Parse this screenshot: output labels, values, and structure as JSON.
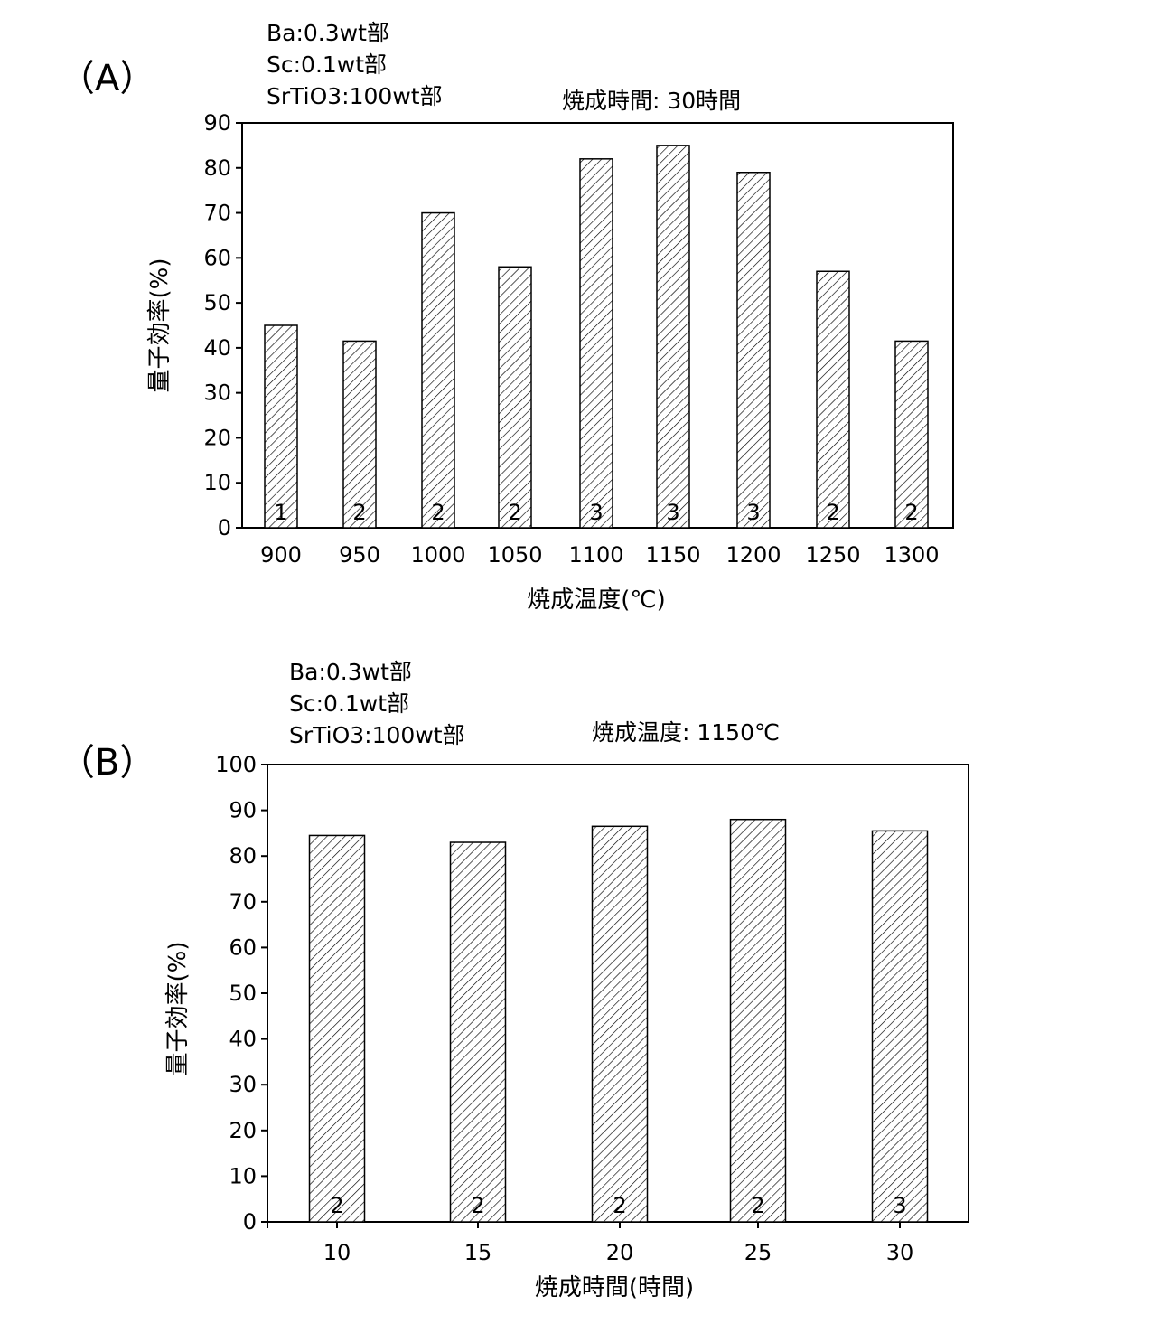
{
  "chart_data": [
    {
      "type": "bar",
      "panel_label": "（A）",
      "annotations": [
        "Ba:0.3wt部",
        "Sc:0.1wt部",
        "SrTiO3:100wt部"
      ],
      "condition": "焼成時間: 30時間",
      "xlabel": "焼成温度(℃)",
      "ylabel": "量子効率(%)",
      "ylim": [
        0,
        90
      ],
      "yticks": [
        0,
        10,
        20,
        30,
        40,
        50,
        60,
        70,
        80,
        90
      ],
      "categories": [
        "900",
        "950",
        "1000",
        "1050",
        "1100",
        "1150",
        "1200",
        "1250",
        "1300"
      ],
      "values": [
        45,
        41.5,
        70,
        58,
        82,
        85,
        79,
        57,
        41.5
      ],
      "bar_labels": [
        "1",
        "2",
        "2",
        "2",
        "3",
        "3",
        "3",
        "2",
        "2"
      ],
      "grid": false,
      "bar_fill": "diagonal-hatch"
    },
    {
      "type": "bar",
      "panel_label": "（B）",
      "annotations": [
        "Ba:0.3wt部",
        "Sc:0.1wt部",
        "SrTiO3:100wt部"
      ],
      "condition": "焼成温度: 1150℃",
      "xlabel": "焼成時間(時間)",
      "ylabel": "量子効率(%)",
      "ylim": [
        0,
        100
      ],
      "yticks": [
        0,
        10,
        20,
        30,
        40,
        50,
        60,
        70,
        80,
        90,
        100
      ],
      "categories": [
        "10",
        "15",
        "20",
        "25",
        "30"
      ],
      "values": [
        84.5,
        83,
        86.5,
        88,
        85.5
      ],
      "bar_labels": [
        "2",
        "2",
        "2",
        "2",
        "3"
      ],
      "grid": false,
      "bar_fill": "diagonal-hatch"
    }
  ]
}
